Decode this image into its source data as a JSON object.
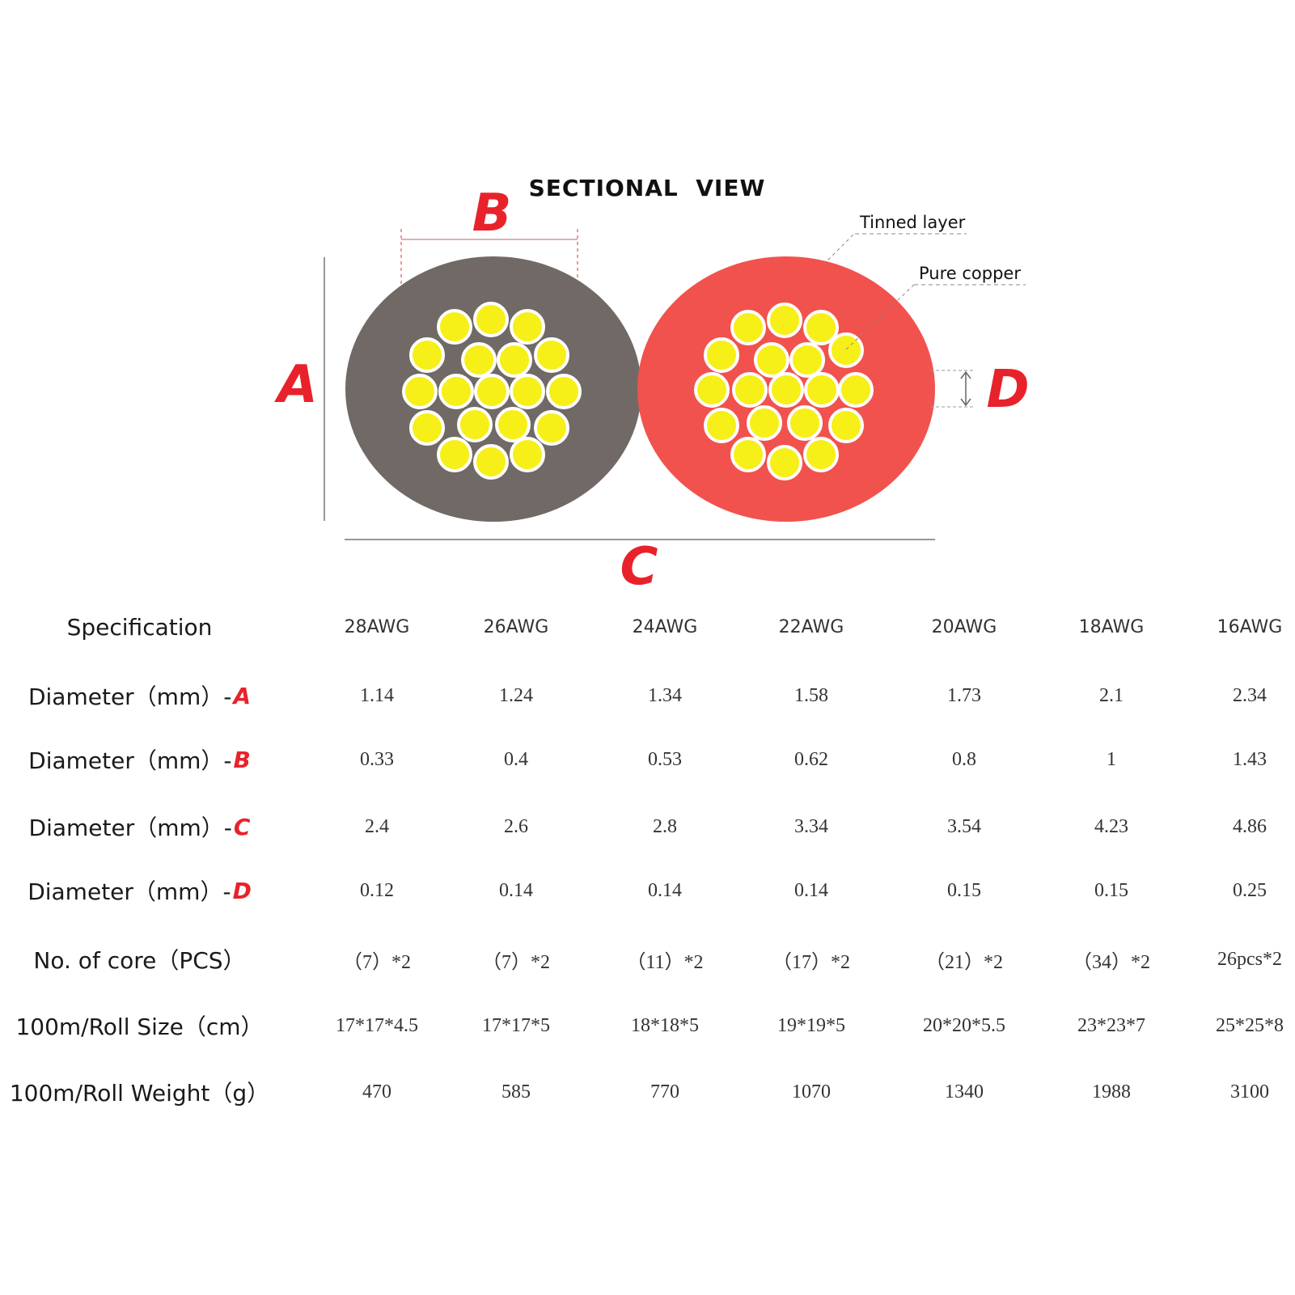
{
  "diagram": {
    "title": "SECTIONAL  VIEW",
    "callouts": {
      "tinned_layer": "Tinned layer",
      "pure_copper": "Pure copper"
    },
    "dimension_labels": {
      "a": "A",
      "b": "B",
      "c": "C",
      "d": "D"
    },
    "colors": {
      "left_jacket": "#706966",
      "right_jacket": "#f1524d",
      "strand": "#f7ef18",
      "label_red": "#e8222b"
    }
  },
  "table": {
    "header_label": "Specification",
    "columns": [
      "28AWG",
      "26AWG",
      "24AWG",
      "22AWG",
      "20AWG",
      "18AWG",
      "16AWG"
    ],
    "rows": [
      {
        "label": "Diameter（mm）-",
        "suffix": "A",
        "values": [
          "1.14",
          "1.24",
          "1.34",
          "1.58",
          "1.73",
          "2.1",
          "2.34"
        ]
      },
      {
        "label": "Diameter（mm）-",
        "suffix": "B",
        "values": [
          "0.33",
          "0.4",
          "0.53",
          "0.62",
          "0.8",
          "1",
          "1.43"
        ]
      },
      {
        "label": "Diameter（mm）-",
        "suffix": "C",
        "values": [
          "2.4",
          "2.6",
          "2.8",
          "3.34",
          "3.54",
          "4.23",
          "4.86"
        ]
      },
      {
        "label": "Diameter（mm）-",
        "suffix": "D",
        "values": [
          "0.12",
          "0.14",
          "0.14",
          "0.14",
          "0.15",
          "0.15",
          "0.25"
        ]
      },
      {
        "label": "No. of core（PCS）",
        "suffix": "",
        "values": [
          "（7）*2",
          "（7）*2",
          "（11）*2",
          "（17）*2",
          "（21）*2",
          "（34）*2",
          "26pcs*2"
        ]
      },
      {
        "label": "100m/Roll Size（cm）",
        "suffix": "",
        "values": [
          "17*17*4.5",
          "17*17*5",
          "18*18*5",
          "19*19*5",
          "20*20*5.5",
          "23*23*7",
          "25*25*8"
        ]
      },
      {
        "label": "100m/Roll Weight（g）",
        "suffix": "",
        "values": [
          "470",
          "585",
          "770",
          "1070",
          "1340",
          "1988",
          "3100"
        ]
      }
    ]
  }
}
